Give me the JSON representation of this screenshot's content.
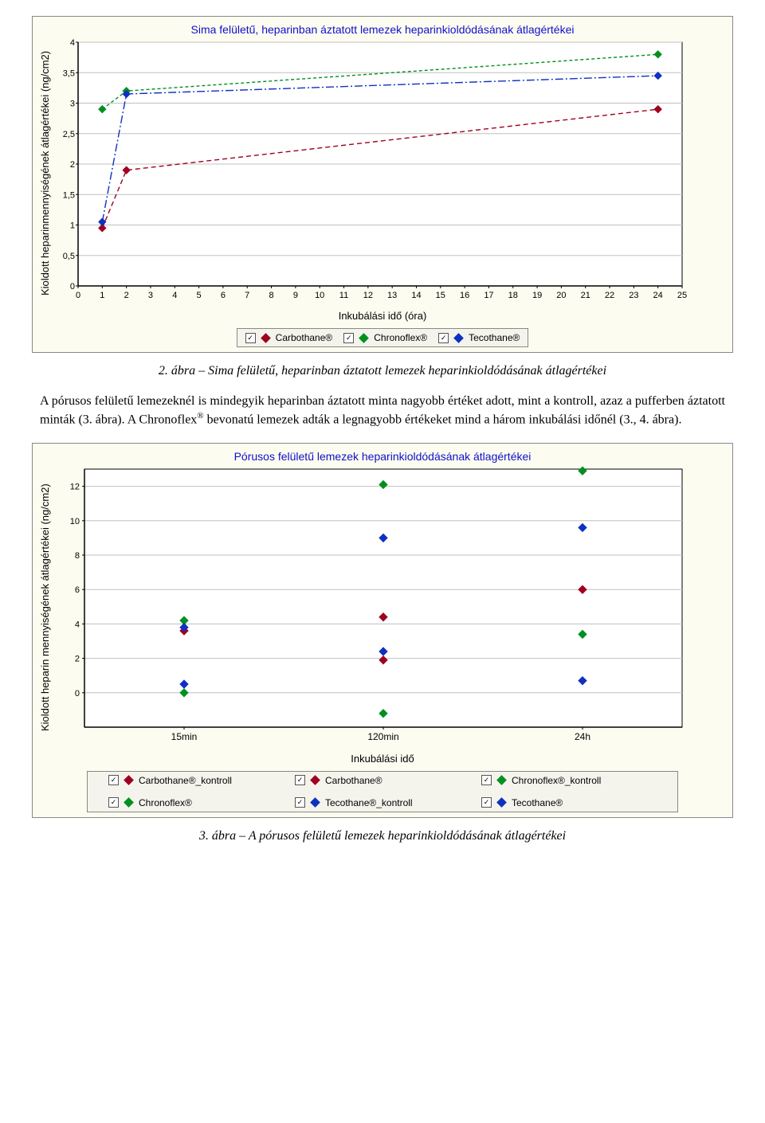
{
  "chart1": {
    "type": "line",
    "title": "Sima felületű, heparinban áztatott lemezek heparinkioldódásának átlagértékei",
    "xlabel": "Inkubálási idő (óra)",
    "ylabel": "Kioldott heparinmennyiségének átlagértékei (ng/cm2)",
    "background_color": "#fcfcf0",
    "plot_bg": "#ffffff",
    "grid_color": "#c0c0c0",
    "axis_color": "#000000",
    "xlim": [
      0,
      25
    ],
    "xtick_step": 1,
    "ylim": [
      0,
      4
    ],
    "ytick_step": 0.5,
    "ytick_labels": [
      "0",
      "0,5",
      "1",
      "1,5",
      "2",
      "2,5",
      "3",
      "3,5",
      "4"
    ],
    "series": [
      {
        "name": "Carbothane®",
        "color": "#a00020",
        "dash": "6 4",
        "x": [
          1,
          2,
          24
        ],
        "y": [
          0.95,
          1.9,
          2.9
        ]
      },
      {
        "name": "Chronoflex®",
        "color": "#009020",
        "dash": "4 3",
        "x": [
          1,
          2,
          24
        ],
        "y": [
          2.9,
          3.2,
          3.8
        ]
      },
      {
        "name": "Tecothane®",
        "color": "#1030c0",
        "dash": "10 3 2 3",
        "x": [
          1,
          2,
          24
        ],
        "y": [
          1.05,
          3.15,
          3.45
        ]
      }
    ],
    "marker": "diamond",
    "marker_size": 9,
    "legend_checkbox": true
  },
  "caption1": "2. ábra – Sima felületű, heparinban áztatott lemezek heparinkioldódásának átlagértékei",
  "paragraph": {
    "pre": "A pórusos felületű lemezeknél is mindegyik heparinban áztatott minta nagyobb értéket adott, mint a kontroll, azaz a pufferben áztatott minták (3. ábra). A Chronoflex",
    "sup": "®",
    "post": " bevonatú lemezek adták a legnagyobb értékeket mind a három inkubálási időnél (3., 4. ábra)."
  },
  "chart2": {
    "type": "scatter",
    "title": "Pórusos felületű lemezek heparinkioldódásának átlagértékei",
    "xlabel": "Inkubálási idő",
    "ylabel": "Kioldott heparin mennyiségének átlagértékei (ng/cm2)",
    "background_color": "#fcfcf0",
    "plot_bg": "#ffffff",
    "grid_color": "#c0c0c0",
    "axis_color": "#000000",
    "categories": [
      "15min",
      "120min",
      "24h"
    ],
    "ylim": [
      -2,
      13
    ],
    "ytick_vals": [
      0,
      2,
      4,
      6,
      8,
      10,
      12
    ],
    "series": [
      {
        "name": "Carbothane®_kontroll",
        "color": "#a00020",
        "y": [
          null,
          1.9,
          null
        ]
      },
      {
        "name": "Carbothane®",
        "color": "#a00020",
        "y": [
          3.6,
          4.4,
          6.0
        ]
      },
      {
        "name": "Chronoflex®_kontroll",
        "color": "#009020",
        "y": [
          0.0,
          -1.2,
          3.4
        ]
      },
      {
        "name": "Chronoflex®",
        "color": "#009020",
        "y": [
          4.2,
          12.1,
          12.9
        ]
      },
      {
        "name": "Tecothane®_kontroll",
        "color": "#1030c0",
        "y": [
          0.5,
          2.4,
          0.7
        ]
      },
      {
        "name": "Tecothane®",
        "color": "#1030c0",
        "y": [
          3.8,
          9.0,
          9.6
        ]
      }
    ],
    "marker": "diamond",
    "marker_size": 10,
    "legend_checkbox": true,
    "legend_cols": 3
  },
  "caption2": "3. ábra – A pórusos felületű lemezek heparinkioldódásának átlagértékei"
}
